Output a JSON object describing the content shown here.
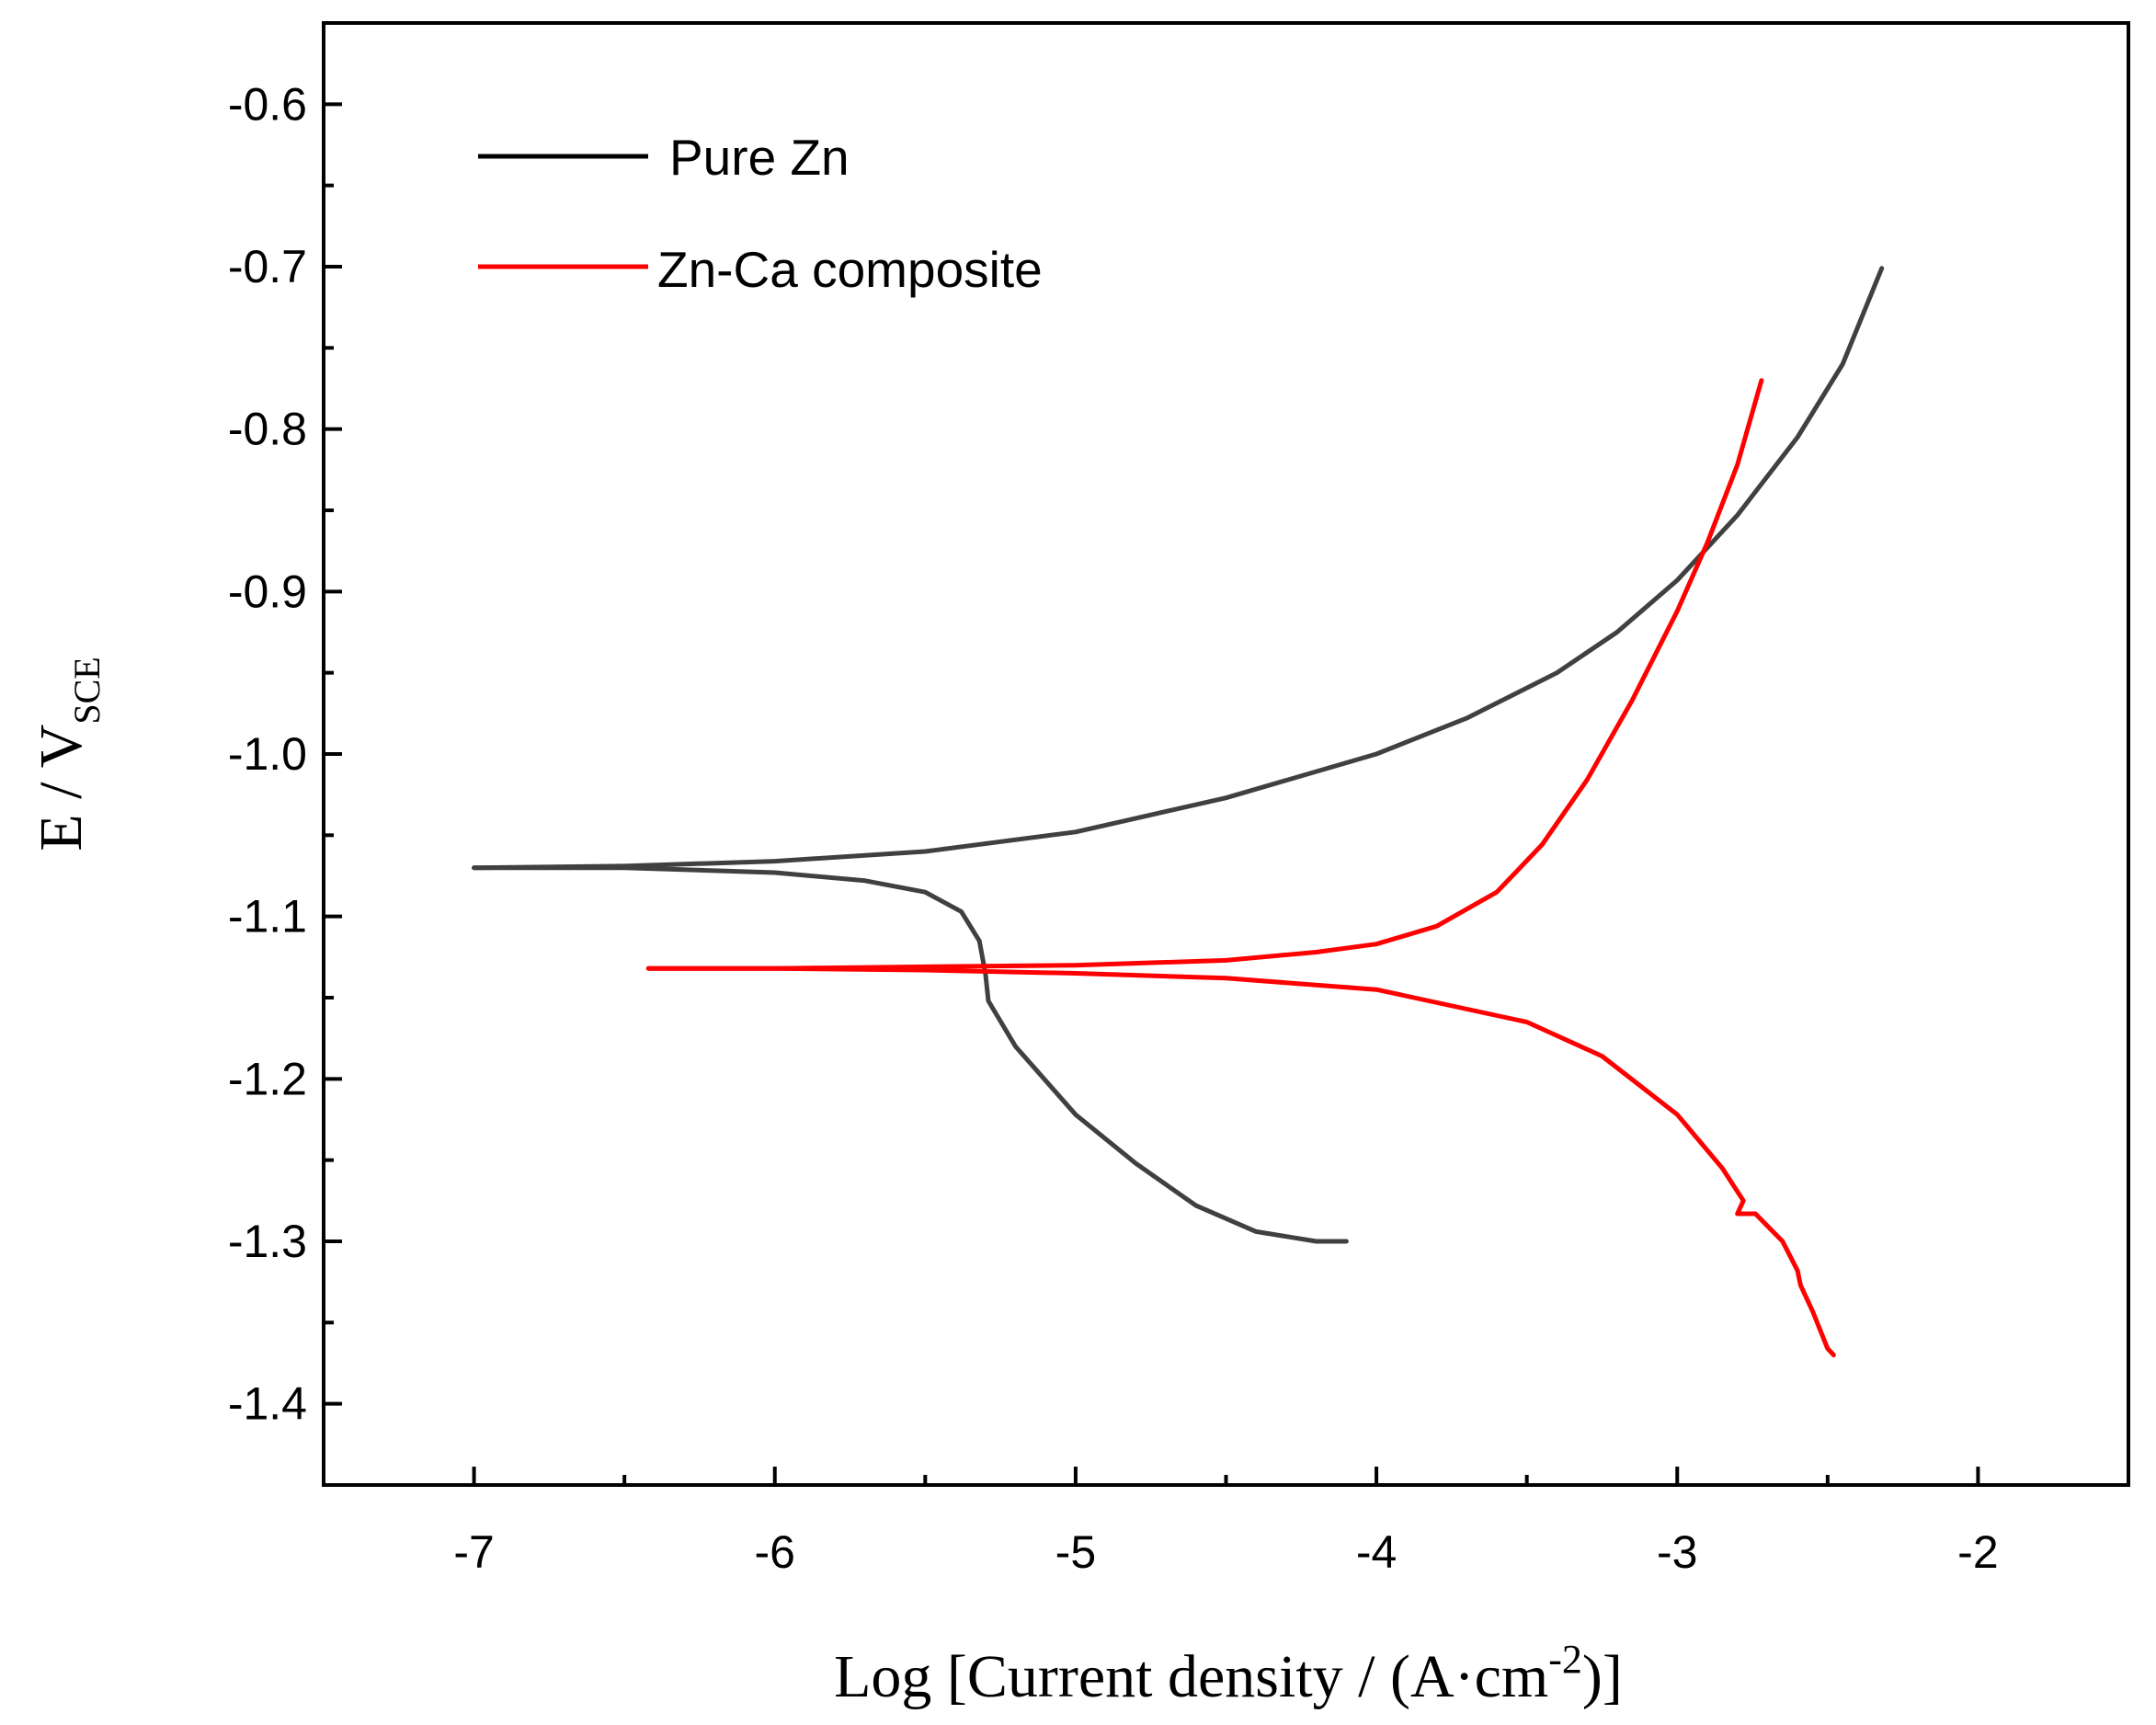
{
  "chart_data": {
    "type": "line",
    "title": "",
    "xlabel": {
      "prefix": "Log [Current density / (A·cm",
      "superscript": "-2",
      "suffix": ")]"
    },
    "ylabel": {
      "main": "E / V",
      "subscript": "SCE"
    },
    "xlim": [
      -7.5,
      -1.5
    ],
    "ylim": [
      -1.45,
      -0.55
    ],
    "x_ticks": [
      -7,
      -6,
      -5,
      -4,
      -3,
      -2
    ],
    "x_tick_labels": [
      "-7",
      "-6",
      "-5",
      "-4",
      "-3",
      "-2"
    ],
    "x_minor_ticks": [
      -6.5,
      -5.5,
      -4.5,
      -3.5,
      -2.5
    ],
    "y_ticks": [
      -1.4,
      -1.3,
      -1.2,
      -1.1,
      -1.0,
      -0.9,
      -0.8,
      -0.7,
      -0.6
    ],
    "y_tick_labels": [
      "-1.4",
      "-1.3",
      "-1.2",
      "-1.1",
      "-1.0",
      "-0.9",
      "-0.8",
      "-0.7",
      "-0.6"
    ],
    "y_minor_ticks": [
      -1.35,
      -1.25,
      -1.15,
      -1.05,
      -0.95,
      -0.85,
      -0.75,
      -0.65
    ],
    "legend_position": "top-left",
    "series": [
      {
        "name": "Pure Zn",
        "color": "#404040",
        "branches": [
          {
            "name": "anodic",
            "points": [
              [
                -7.0,
                -1.07
              ],
              [
                -6.5,
                -1.069
              ],
              [
                -6.0,
                -1.066
              ],
              [
                -5.5,
                -1.06
              ],
              [
                -5.0,
                -1.048
              ],
              [
                -4.5,
                -1.027
              ],
              [
                -4.0,
                -1.0
              ],
              [
                -3.7,
                -0.978
              ],
              [
                -3.4,
                -0.95
              ],
              [
                -3.2,
                -0.925
              ],
              [
                -3.0,
                -0.893
              ],
              [
                -2.8,
                -0.853
              ],
              [
                -2.6,
                -0.805
              ],
              [
                -2.45,
                -0.76
              ],
              [
                -2.32,
                -0.701
              ]
            ]
          },
          {
            "name": "cathodic",
            "points": [
              [
                -7.0,
                -1.07
              ],
              [
                -6.5,
                -1.07
              ],
              [
                -6.0,
                -1.073
              ],
              [
                -5.7,
                -1.078
              ],
              [
                -5.5,
                -1.085
              ],
              [
                -5.38,
                -1.097
              ],
              [
                -5.32,
                -1.115
              ],
              [
                -5.3,
                -1.135
              ],
              [
                -5.29,
                -1.152
              ],
              [
                -5.2,
                -1.18
              ],
              [
                -5.0,
                -1.222
              ],
              [
                -4.8,
                -1.252
              ],
              [
                -4.6,
                -1.278
              ],
              [
                -4.4,
                -1.294
              ],
              [
                -4.2,
                -1.3
              ],
              [
                -4.1,
                -1.3
              ]
            ]
          }
        ]
      },
      {
        "name": "Zn-Ca composite",
        "color": "#ff0000",
        "branches": [
          {
            "name": "anodic",
            "points": [
              [
                -6.42,
                -1.132
              ],
              [
                -6.0,
                -1.132
              ],
              [
                -5.5,
                -1.131
              ],
              [
                -5.0,
                -1.13
              ],
              [
                -4.5,
                -1.127
              ],
              [
                -4.2,
                -1.122
              ],
              [
                -4.0,
                -1.117
              ],
              [
                -3.8,
                -1.106
              ],
              [
                -3.6,
                -1.085
              ],
              [
                -3.45,
                -1.056
              ],
              [
                -3.3,
                -1.016
              ],
              [
                -3.15,
                -0.967
              ],
              [
                -3.0,
                -0.912
              ],
              [
                -2.9,
                -0.87
              ],
              [
                -2.8,
                -0.822
              ],
              [
                -2.72,
                -0.77
              ]
            ]
          },
          {
            "name": "cathodic",
            "points": [
              [
                -6.42,
                -1.132
              ],
              [
                -6.0,
                -1.132
              ],
              [
                -5.5,
                -1.133
              ],
              [
                -5.0,
                -1.135
              ],
              [
                -4.5,
                -1.138
              ],
              [
                -4.0,
                -1.145
              ],
              [
                -3.5,
                -1.165
              ],
              [
                -3.25,
                -1.186
              ],
              [
                -3.0,
                -1.222
              ],
              [
                -2.85,
                -1.255
              ],
              [
                -2.78,
                -1.275
              ],
              [
                -2.8,
                -1.283
              ],
              [
                -2.74,
                -1.283
              ],
              [
                -2.65,
                -1.3
              ],
              [
                -2.6,
                -1.318
              ],
              [
                -2.59,
                -1.327
              ],
              [
                -2.55,
                -1.343
              ],
              [
                -2.5,
                -1.366
              ],
              [
                -2.48,
                -1.37
              ]
            ]
          }
        ]
      }
    ]
  }
}
